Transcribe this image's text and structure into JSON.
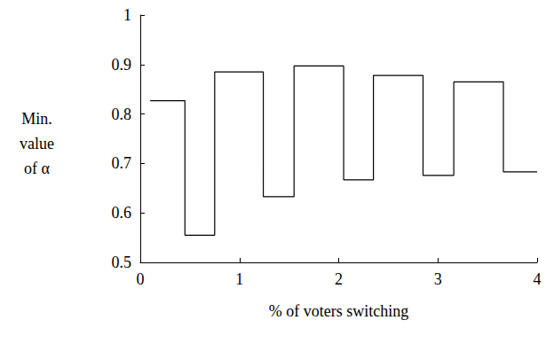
{
  "chart_data": {
    "type": "line",
    "line_style": "step",
    "color": "#000000",
    "xlabel": "% of voters switching",
    "ylabel": "Min.\nvalue\nof α",
    "x": [
      0.1,
      0.45,
      0.75,
      1.24,
      1.55,
      2.05,
      2.35,
      2.85,
      3.16,
      3.66,
      4.0
    ],
    "values": [
      0.827,
      0.555,
      0.885,
      0.633,
      0.897,
      0.667,
      0.878,
      0.676,
      0.865,
      0.683,
      0.683
    ],
    "xlim": [
      0,
      4
    ],
    "xticks": [
      0,
      1,
      2,
      3,
      4
    ],
    "ylim": [
      0.5,
      1
    ],
    "yticks": [
      0.5,
      0.6,
      0.7,
      0.8,
      0.9,
      1
    ],
    "grid": false
  }
}
